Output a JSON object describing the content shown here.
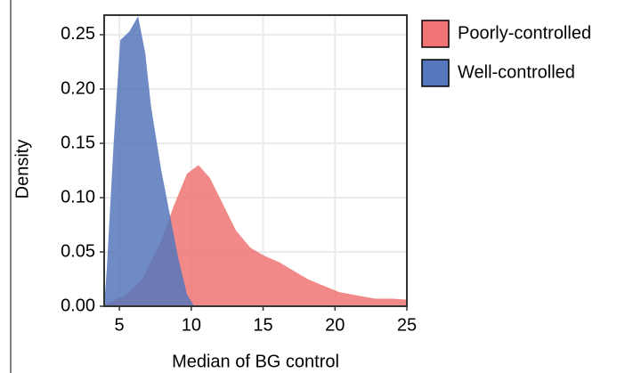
{
  "chart_data": {
    "type": "density",
    "x_label": "Median of BG control",
    "y_label": "Density",
    "series": [
      {
        "name": "Poorly-controlled",
        "color": "#f07474",
        "x": [
          3.94,
          5.4,
          6.6,
          7.9,
          8.8,
          9.7,
          10.5,
          11.3,
          12.2,
          13.1,
          14.1,
          15,
          16.2,
          17.2,
          18.1,
          19,
          20.3,
          21.5,
          22.8,
          24,
          25
        ],
        "values": [
          0.001,
          0.01,
          0.025,
          0.06,
          0.093,
          0.122,
          0.13,
          0.118,
          0.094,
          0.07,
          0.054,
          0.047,
          0.04,
          0.032,
          0.025,
          0.02,
          0.013,
          0.01,
          0.007,
          0.007,
          0.006
        ]
      },
      {
        "name": "Well-controlled",
        "color": "#5577bb",
        "x": [
          3.94,
          4.13,
          4.6,
          5.06,
          5.7,
          6.3,
          6.8,
          7.2,
          7.9,
          8.5,
          9.1,
          9.7,
          10.2
        ],
        "values": [
          0.0,
          0.036,
          0.15,
          0.245,
          0.253,
          0.267,
          0.233,
          0.184,
          0.126,
          0.085,
          0.044,
          0.011,
          0.0
        ]
      }
    ],
    "xlim": [
      3.94,
      25
    ],
    "ylim": [
      0,
      0.268
    ],
    "xticks": [
      5,
      10,
      15,
      20,
      25
    ],
    "yticks": [
      {
        "value": 0,
        "label": "0.00"
      },
      {
        "value": 0.05,
        "label": "0.05"
      },
      {
        "value": 0.1,
        "label": "0.10"
      },
      {
        "value": 0.15,
        "label": "0.15"
      },
      {
        "value": 0.2,
        "label": "0.20"
      },
      {
        "value": 0.25,
        "label": "0.25"
      }
    ],
    "grid": true,
    "legend": "right"
  }
}
